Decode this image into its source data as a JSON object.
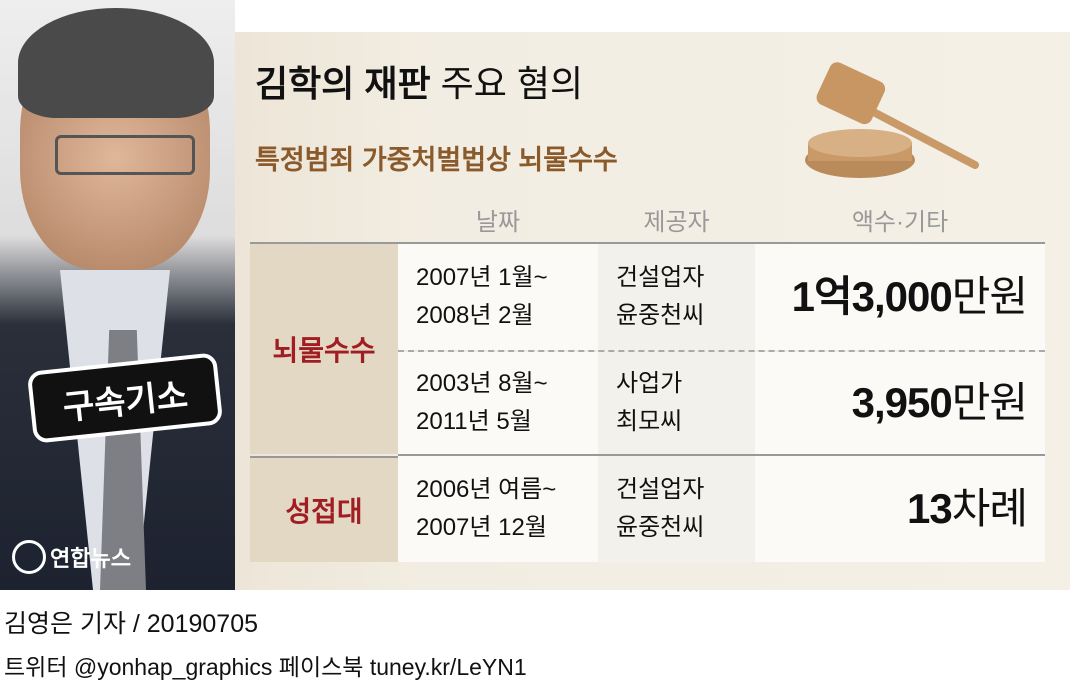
{
  "title": {
    "bold": "김학의 재판",
    "regular": "주요 혐의"
  },
  "subtitle": "특정범죄 가중처벌법상 뇌물수수",
  "photo_badge": "구속기소",
  "logo": "연합뉴스",
  "headers": [
    "날짜",
    "제공자",
    "액수·기타"
  ],
  "categories": [
    {
      "label": "뇌물수수"
    },
    {
      "label": "성접대"
    }
  ],
  "rows": [
    {
      "date": [
        "2007년 1월~",
        "2008년 2월"
      ],
      "provider": [
        "건설업자",
        "윤중천씨"
      ],
      "amount": "1억3,000",
      "unit": "만원"
    },
    {
      "date": [
        "2003년 8월~",
        "2011년 5월"
      ],
      "provider": [
        "사업가",
        "최모씨"
      ],
      "amount": "3,950",
      "unit": "만원"
    },
    {
      "date": [
        "2006년 여름~",
        "2007년 12월"
      ],
      "provider": [
        "건설업자",
        "윤중천씨"
      ],
      "amount": "13",
      "unit": "차례"
    }
  ],
  "credit": "김영은 기자 / 20190705",
  "social": "트위터 @yonhap_graphics  페이스북 tuney.kr/LeYN1",
  "colors": {
    "accent_red": "#a11d24",
    "subtitle_brown": "#8b5a2b",
    "background": "#f2ede2"
  }
}
